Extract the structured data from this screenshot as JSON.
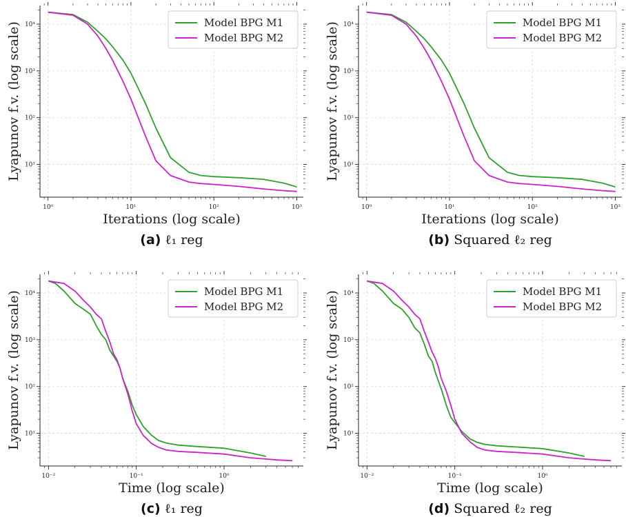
{
  "chart_data": [
    {
      "type": "line",
      "xlabel": "Iterations (log scale)",
      "ylabel": "Lyapunov f.v. (log scale)",
      "caption_letter": "(a)",
      "caption_text": "ℓ₁ reg",
      "x_scale": "log",
      "y_scale": "log",
      "xlim": [
        0.8,
        1200
      ],
      "ylim": [
        2,
        25000
      ],
      "x_ticks": [
        1,
        10,
        100,
        1000
      ],
      "x_tick_labels": [
        "10⁰",
        "10¹",
        "10²",
        "10³"
      ],
      "y_ticks": [
        10,
        100,
        1000,
        10000
      ],
      "y_tick_labels": [
        "10¹",
        "10²",
        "10³",
        "10⁴"
      ],
      "grid": true,
      "legend_position": "top-right",
      "series": [
        {
          "name": "Model BPG M1",
          "color": "#2ca02c",
          "points": [
            [
              1,
              18000
            ],
            [
              2,
              16000
            ],
            [
              3,
              11000
            ],
            [
              4,
              7000
            ],
            [
              5,
              4800
            ],
            [
              6,
              3300
            ],
            [
              8,
              1700
            ],
            [
              10,
              900
            ],
            [
              15,
              200
            ],
            [
              20,
              60
            ],
            [
              30,
              14
            ],
            [
              50,
              6.8
            ],
            [
              70,
              5.8
            ],
            [
              100,
              5.5
            ],
            [
              200,
              5.2
            ],
            [
              400,
              4.8
            ],
            [
              700,
              4.0
            ],
            [
              1000,
              3.3
            ]
          ]
        },
        {
          "name": "Model BPG M2",
          "color": "#cc22cc",
          "points": [
            [
              1,
              18000
            ],
            [
              2,
              15500
            ],
            [
              3,
              10000
            ],
            [
              4,
              5500
            ],
            [
              5,
              3000
            ],
            [
              6,
              1700
            ],
            [
              8,
              600
            ],
            [
              10,
              250
            ],
            [
              15,
              40
            ],
            [
              20,
              12
            ],
            [
              30,
              5.8
            ],
            [
              50,
              4.2
            ],
            [
              70,
              3.9
            ],
            [
              100,
              3.75
            ],
            [
              200,
              3.4
            ],
            [
              400,
              3.0
            ],
            [
              700,
              2.75
            ],
            [
              1000,
              2.65
            ]
          ]
        }
      ]
    },
    {
      "type": "line",
      "xlabel": "Iterations (log scale)",
      "ylabel": "Lyapunov f.v. (log scale)",
      "caption_letter": "(b)",
      "caption_text": "Squared ℓ₂ reg",
      "x_scale": "log",
      "y_scale": "log",
      "xlim": [
        0.8,
        1200
      ],
      "ylim": [
        2,
        25000
      ],
      "x_ticks": [
        1,
        10,
        100,
        1000
      ],
      "x_tick_labels": [
        "10⁰",
        "10¹",
        "10²",
        "10³"
      ],
      "y_ticks": [
        10,
        100,
        1000,
        10000
      ],
      "y_tick_labels": [
        "10¹",
        "10²",
        "10³",
        "10⁴"
      ],
      "grid": true,
      "legend_position": "top-right",
      "series": [
        {
          "name": "Model BPG M1",
          "color": "#2ca02c",
          "points": [
            [
              1,
              18000
            ],
            [
              2,
              16000
            ],
            [
              3,
              11000
            ],
            [
              4,
              7000
            ],
            [
              5,
              4800
            ],
            [
              6,
              3300
            ],
            [
              8,
              1700
            ],
            [
              10,
              900
            ],
            [
              15,
              200
            ],
            [
              20,
              60
            ],
            [
              30,
              14
            ],
            [
              50,
              6.8
            ],
            [
              70,
              5.8
            ],
            [
              100,
              5.5
            ],
            [
              200,
              5.2
            ],
            [
              400,
              4.8
            ],
            [
              700,
              4.0
            ],
            [
              1000,
              3.3
            ]
          ]
        },
        {
          "name": "Model BPG M2",
          "color": "#cc22cc",
          "points": [
            [
              1,
              18000
            ],
            [
              2,
              15500
            ],
            [
              3,
              10000
            ],
            [
              4,
              5500
            ],
            [
              5,
              3000
            ],
            [
              6,
              1700
            ],
            [
              8,
              600
            ],
            [
              10,
              250
            ],
            [
              15,
              40
            ],
            [
              20,
              12
            ],
            [
              30,
              5.8
            ],
            [
              50,
              4.2
            ],
            [
              70,
              3.9
            ],
            [
              100,
              3.75
            ],
            [
              200,
              3.4
            ],
            [
              400,
              3.0
            ],
            [
              700,
              2.75
            ],
            [
              1000,
              2.65
            ]
          ]
        }
      ]
    },
    {
      "type": "line",
      "xlabel": "Time (log scale)",
      "ylabel": "Lyapunov f.v. (log scale)",
      "caption_letter": "(c)",
      "caption_text": "ℓ₁ reg",
      "x_scale": "log",
      "y_scale": "log",
      "xlim": [
        0.008,
        8
      ],
      "ylim": [
        2,
        25000
      ],
      "x_ticks": [
        0.01,
        0.1,
        1
      ],
      "x_tick_labels": [
        "10⁻²",
        "10⁻¹",
        "10⁰"
      ],
      "y_ticks": [
        10,
        100,
        1000,
        10000
      ],
      "y_tick_labels": [
        "10¹",
        "10²",
        "10³",
        "10⁴"
      ],
      "grid": true,
      "legend_position": "top-right",
      "series": [
        {
          "name": "Model BPG M1",
          "color": "#2ca02c",
          "points": [
            [
              0.01,
              18000
            ],
            [
              0.012,
              16000
            ],
            [
              0.015,
              11000
            ],
            [
              0.02,
              6000
            ],
            [
              0.025,
              4500
            ],
            [
              0.03,
              3500
            ],
            [
              0.035,
              2000
            ],
            [
              0.04,
              1300
            ],
            [
              0.045,
              1000
            ],
            [
              0.05,
              600
            ],
            [
              0.055,
              450
            ],
            [
              0.06,
              350
            ],
            [
              0.065,
              250
            ],
            [
              0.07,
              150
            ],
            [
              0.08,
              80
            ],
            [
              0.09,
              40
            ],
            [
              0.1,
              25
            ],
            [
              0.12,
              14
            ],
            [
              0.15,
              9
            ],
            [
              0.18,
              7
            ],
            [
              0.22,
              6.2
            ],
            [
              0.3,
              5.6
            ],
            [
              0.5,
              5.2
            ],
            [
              1,
              4.8
            ],
            [
              2,
              3.8
            ],
            [
              3,
              3.2
            ]
          ]
        },
        {
          "name": "Model BPG M2",
          "color": "#cc22cc",
          "points": [
            [
              0.01,
              18000
            ],
            [
              0.015,
              16000
            ],
            [
              0.02,
              11000
            ],
            [
              0.025,
              7000
            ],
            [
              0.03,
              5000
            ],
            [
              0.035,
              3500
            ],
            [
              0.04,
              2800
            ],
            [
              0.045,
              1500
            ],
            [
              0.05,
              900
            ],
            [
              0.055,
              500
            ],
            [
              0.06,
              380
            ],
            [
              0.065,
              250
            ],
            [
              0.07,
              150
            ],
            [
              0.08,
              70
            ],
            [
              0.09,
              30
            ],
            [
              0.1,
              16
            ],
            [
              0.12,
              9
            ],
            [
              0.15,
              6
            ],
            [
              0.18,
              5
            ],
            [
              0.22,
              4.4
            ],
            [
              0.3,
              4.1
            ],
            [
              0.5,
              3.9
            ],
            [
              1,
              3.6
            ],
            [
              2,
              3.0
            ],
            [
              4,
              2.7
            ],
            [
              6,
              2.6
            ]
          ]
        }
      ]
    },
    {
      "type": "line",
      "xlabel": "Time (log scale)",
      "ylabel": "Lyapunov f.v. (log scale)",
      "caption_letter": "(d)",
      "caption_text": "Squared ℓ₂ reg",
      "x_scale": "log",
      "y_scale": "log",
      "xlim": [
        0.008,
        8
      ],
      "ylim": [
        2,
        25000
      ],
      "x_ticks": [
        0.01,
        0.1,
        1
      ],
      "x_tick_labels": [
        "10⁻²",
        "10⁻¹",
        "10⁰"
      ],
      "y_ticks": [
        10,
        100,
        1000,
        10000
      ],
      "y_tick_labels": [
        "10¹",
        "10²",
        "10³",
        "10⁴"
      ],
      "grid": true,
      "legend_position": "top-right",
      "series": [
        {
          "name": "Model BPG M1",
          "color": "#2ca02c",
          "points": [
            [
              0.01,
              18000
            ],
            [
              0.012,
              16000
            ],
            [
              0.015,
              11000
            ],
            [
              0.02,
              6000
            ],
            [
              0.025,
              4500
            ],
            [
              0.03,
              3000
            ],
            [
              0.035,
              1800
            ],
            [
              0.04,
              1400
            ],
            [
              0.045,
              800
            ],
            [
              0.05,
              450
            ],
            [
              0.055,
              350
            ],
            [
              0.06,
              200
            ],
            [
              0.065,
              130
            ],
            [
              0.07,
              90
            ],
            [
              0.08,
              40
            ],
            [
              0.09,
              22
            ],
            [
              0.1,
              17
            ],
            [
              0.12,
              11
            ],
            [
              0.15,
              7.5
            ],
            [
              0.18,
              6.4
            ],
            [
              0.22,
              5.8
            ],
            [
              0.3,
              5.4
            ],
            [
              0.5,
              5.1
            ],
            [
              1,
              4.7
            ],
            [
              2,
              3.8
            ],
            [
              3,
              3.2
            ]
          ]
        },
        {
          "name": "Model BPG M2",
          "color": "#cc22cc",
          "points": [
            [
              0.01,
              18000
            ],
            [
              0.015,
              16000
            ],
            [
              0.02,
              11000
            ],
            [
              0.025,
              7000
            ],
            [
              0.03,
              5000
            ],
            [
              0.035,
              3500
            ],
            [
              0.04,
              2800
            ],
            [
              0.045,
              1500
            ],
            [
              0.05,
              900
            ],
            [
              0.055,
              550
            ],
            [
              0.06,
              400
            ],
            [
              0.065,
              260
            ],
            [
              0.07,
              150
            ],
            [
              0.08,
              80
            ],
            [
              0.09,
              40
            ],
            [
              0.1,
              20
            ],
            [
              0.12,
              10
            ],
            [
              0.15,
              6.5
            ],
            [
              0.18,
              5
            ],
            [
              0.22,
              4.4
            ],
            [
              0.3,
              4.1
            ],
            [
              0.5,
              3.9
            ],
            [
              1,
              3.6
            ],
            [
              2,
              3.0
            ],
            [
              4,
              2.7
            ],
            [
              6,
              2.6
            ]
          ]
        }
      ]
    }
  ]
}
